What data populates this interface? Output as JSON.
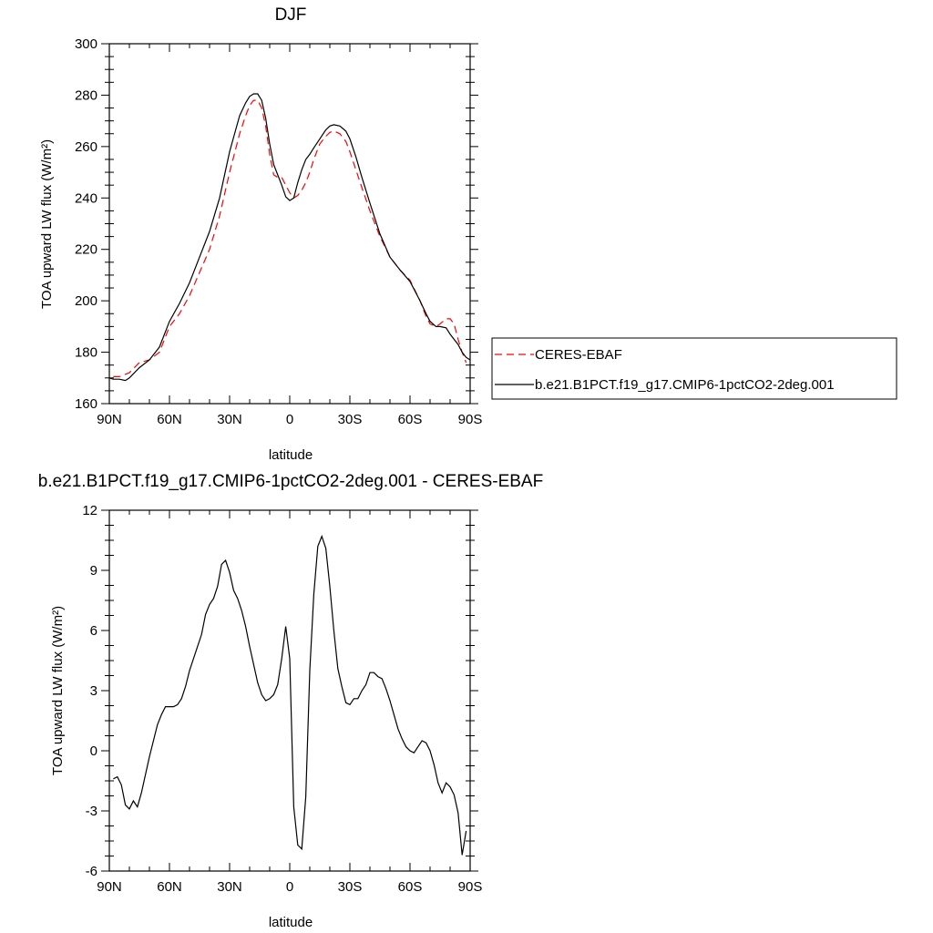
{
  "chart_data": [
    {
      "type": "line",
      "title": "DJF",
      "xlabel": "latitude",
      "ylabel": "TOA upward LW flux (W/m²)",
      "xlim": [
        90,
        -90
      ],
      "ylim": [
        160,
        300
      ],
      "x_ticks": [
        90,
        60,
        30,
        0,
        -30,
        -60,
        -90
      ],
      "x_tick_labels": [
        "90N",
        "60N",
        "30N",
        "0",
        "30S",
        "60S",
        "90S"
      ],
      "y_ticks": [
        160,
        180,
        200,
        220,
        240,
        260,
        280,
        300
      ],
      "y_tick_labels": [
        "160",
        "180",
        "200",
        "220",
        "240",
        "260",
        "280",
        "300"
      ],
      "legend_position": "right",
      "series": [
        {
          "name": "CERES-EBAF",
          "color": "#ff0000",
          "dash": "dashed",
          "x": [
            88,
            85,
            80,
            75,
            70,
            65,
            60,
            55,
            50,
            45,
            40,
            35,
            30,
            25,
            22,
            20,
            18,
            16,
            14,
            12,
            10,
            8,
            6,
            4,
            2,
            0,
            -2,
            -4,
            -6,
            -8,
            -10,
            -12,
            -15,
            -18,
            -20,
            -22,
            -25,
            -28,
            -30,
            -33,
            -36,
            -40,
            -45,
            -50,
            -55,
            -60,
            -65,
            -68,
            -70,
            -73,
            -75,
            -78,
            -80,
            -82,
            -84,
            -86,
            -88
          ],
          "y": [
            170.5,
            170.5,
            172,
            176,
            177,
            180,
            190,
            195,
            202,
            211,
            220,
            233,
            250,
            265,
            272,
            276,
            278,
            278,
            275,
            268,
            257,
            249,
            248,
            248,
            245,
            242,
            240,
            241,
            243,
            246,
            250,
            255,
            261,
            264,
            265.5,
            266,
            265,
            262,
            258,
            251,
            244,
            235,
            225,
            217,
            212,
            208,
            200,
            194,
            191,
            190,
            191,
            193,
            193,
            191,
            185,
            180,
            176
          ]
        },
        {
          "name": "b.e21.B1PCT.f19_g17.CMIP6-1pctCO2-2deg.001",
          "color": "#000000",
          "dash": "solid",
          "x": [
            90,
            88,
            85,
            82,
            80,
            75,
            70,
            65,
            60,
            55,
            50,
            45,
            40,
            35,
            30,
            25,
            22,
            20,
            18,
            16,
            14,
            12,
            10,
            8,
            6,
            4,
            2,
            0,
            -2,
            -4,
            -6,
            -8,
            -10,
            -12,
            -15,
            -18,
            -20,
            -22,
            -25,
            -28,
            -30,
            -33,
            -36,
            -40,
            -45,
            -50,
            -55,
            -60,
            -65,
            -68,
            -70,
            -73,
            -75,
            -78,
            -80,
            -82,
            -84,
            -86,
            -88,
            -90
          ],
          "y": [
            170,
            169.5,
            169.5,
            169,
            170,
            174,
            177,
            182,
            192,
            199,
            207,
            217,
            227,
            240,
            258,
            272,
            277,
            279.5,
            280.5,
            280.5,
            278,
            271,
            261,
            253,
            249,
            245,
            240.5,
            239,
            240,
            246,
            251,
            255,
            257,
            259.5,
            263,
            266.5,
            268,
            268.5,
            268,
            266,
            263,
            256,
            248,
            238,
            226,
            217,
            212,
            207.5,
            200,
            195,
            192,
            190,
            190,
            189.5,
            187,
            185,
            183,
            180,
            178,
            177
          ]
        }
      ]
    },
    {
      "type": "line",
      "title": "b.e21.B1PCT.f19_g17.CMIP6-1pctCO2-2deg.001 - CERES-EBAF",
      "xlabel": "latitude",
      "ylabel": "TOA upward LW flux (W/m²)",
      "xlim": [
        90,
        -90
      ],
      "ylim": [
        -6,
        12
      ],
      "x_ticks": [
        90,
        60,
        30,
        0,
        -30,
        -60,
        -90
      ],
      "x_tick_labels": [
        "90N",
        "60N",
        "30N",
        "0",
        "30S",
        "60S",
        "90S"
      ],
      "y_ticks": [
        -6,
        -3,
        0,
        3,
        6,
        9,
        12
      ],
      "y_tick_labels": [
        "-6",
        "-3",
        "0",
        "3",
        "6",
        "9",
        "12"
      ],
      "series": [
        {
          "color": "#000000",
          "dash": "solid",
          "x": [
            88,
            86,
            84,
            82,
            80,
            78,
            76,
            74,
            72,
            70,
            68,
            66,
            64,
            62,
            60,
            58,
            56,
            54,
            52,
            50,
            48,
            46,
            44,
            42,
            40,
            38,
            36,
            34,
            32,
            30,
            28,
            26,
            24,
            22,
            20,
            18,
            16,
            14,
            12,
            10,
            8,
            6,
            4,
            2,
            0,
            -2,
            -4,
            -6,
            -8,
            -10,
            -12,
            -14,
            -16,
            -18,
            -20,
            -22,
            -24,
            -26,
            -28,
            -30,
            -32,
            -34,
            -36,
            -38,
            -40,
            -42,
            -44,
            -46,
            -48,
            -50,
            -52,
            -54,
            -56,
            -58,
            -60,
            -62,
            -64,
            -66,
            -68,
            -70,
            -72,
            -74,
            -76,
            -78,
            -80,
            -82,
            -84,
            -86,
            -88
          ],
          "y": [
            -1.4,
            -1.3,
            -1.7,
            -2.7,
            -2.9,
            -2.5,
            -2.8,
            -2.1,
            -1.2,
            -0.3,
            0.5,
            1.3,
            1.8,
            2.2,
            2.2,
            2.2,
            2.3,
            2.6,
            3.2,
            4.0,
            4.6,
            5.2,
            5.8,
            6.8,
            7.3,
            7.6,
            8.2,
            9.3,
            9.5,
            8.9,
            8.0,
            7.6,
            7.0,
            6.2,
            5.2,
            4.3,
            3.4,
            2.8,
            2.5,
            2.6,
            2.8,
            3.3,
            4.6,
            6.2,
            4.6,
            -2.8,
            -4.7,
            -4.9,
            -2.3,
            4.0,
            7.8,
            10.2,
            10.7,
            10.1,
            8.2,
            6.0,
            4.1,
            3.2,
            2.4,
            2.3,
            2.6,
            2.6,
            3.0,
            3.3,
            3.9,
            3.9,
            3.7,
            3.6,
            3.1,
            2.5,
            1.8,
            1.1,
            0.6,
            0.2,
            0.0,
            -0.1,
            0.2,
            0.5,
            0.4,
            0.0,
            -0.7,
            -1.6,
            -2.1,
            -1.6,
            -1.8,
            -2.2,
            -3.1,
            -5.2,
            -4.0
          ]
        }
      ]
    }
  ]
}
